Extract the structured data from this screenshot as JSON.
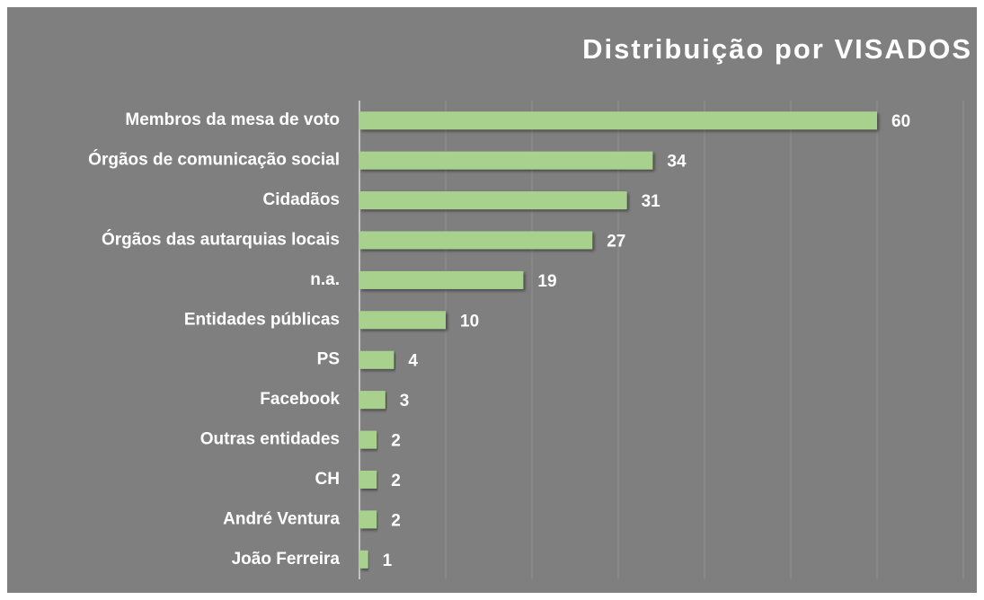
{
  "chart_data": {
    "type": "barh",
    "title": "Distribuição por VISADOS",
    "categories": [
      "Membros da mesa de voto",
      "Órgãos de comunicação social",
      "Cidadãos",
      "Órgãos das autarquias locais",
      "n.a.",
      "Entidades públicas",
      "PS",
      "Facebook",
      "Outras entidades",
      "CH",
      "André Ventura",
      "João Ferreira"
    ],
    "values": [
      60,
      34,
      31,
      27,
      19,
      10,
      4,
      3,
      2,
      2,
      2,
      1
    ],
    "color": "#a9d18e",
    "xlim": [
      0,
      70
    ],
    "xticks": [
      0,
      10,
      20,
      30,
      40,
      50,
      60,
      70
    ],
    "grid": true
  }
}
